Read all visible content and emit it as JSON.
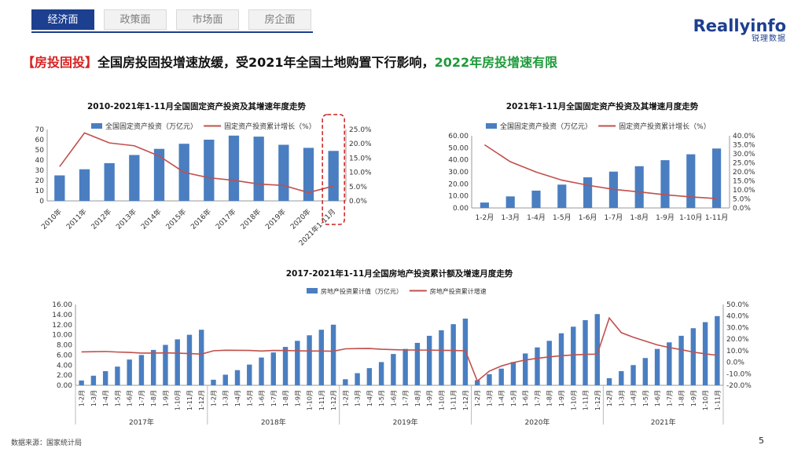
{
  "nav": {
    "tabs": [
      {
        "label": "经济面",
        "active": true
      },
      {
        "label": "政策面",
        "active": false
      },
      {
        "label": "市场面",
        "active": false
      },
      {
        "label": "房企面",
        "active": false
      }
    ]
  },
  "logo": {
    "text": "Reallyinfo",
    "sub": "锐理数据"
  },
  "headline": {
    "tag": "【房投固投】",
    "main": "全国房投固投增速放缓，受2021年全国土地购置下行影响，",
    "highlight": "2022年房投增速有限"
  },
  "footer": {
    "source": "数据来源：国家统计局",
    "page": "5"
  },
  "colors": {
    "bar": "#4a7ec1",
    "line": "#c0504d",
    "accent": "#1c3f8f",
    "highlight_box": "#cc1f1f"
  },
  "chart_data": [
    {
      "type": "bar",
      "title": "2010-2021年1-11月全国固定资产投资及其增速年度走势",
      "categories": [
        "2010年",
        "2011年",
        "2012年",
        "2013年",
        "2014年",
        "2015年",
        "2016年",
        "2017年",
        "2018年",
        "2019年",
        "2020年",
        "2021年1-11月"
      ],
      "series": [
        {
          "name": "全国固定资产投资（万亿元）",
          "type": "bar",
          "axis": "left",
          "values": [
            25,
            31,
            37,
            45,
            51,
            56,
            60,
            64,
            63,
            55,
            52,
            49
          ]
        },
        {
          "name": "固定资产投资累计增长（%）",
          "type": "line",
          "axis": "right",
          "values": [
            12.0,
            23.8,
            20.3,
            19.3,
            15.7,
            10.0,
            8.1,
            7.2,
            5.9,
            5.4,
            2.9,
            5.2
          ]
        }
      ],
      "yticks_left": [
        "0",
        "10",
        "20",
        "30",
        "40",
        "50",
        "60",
        "70"
      ],
      "yticks_right": [
        "0.0%",
        "5.0%",
        "10.0%",
        "15.0%",
        "20.0%",
        "25.0%"
      ],
      "ylim_left": [
        0,
        70
      ],
      "ylim_right": [
        0,
        25
      ],
      "highlight": "2021年1-11月"
    },
    {
      "type": "bar",
      "title": "2021年1-11月全国固定资产投资及其增速月度走势",
      "categories": [
        "1-2月",
        "1-3月",
        "1-4月",
        "1-5月",
        "1-6月",
        "1-7月",
        "1-8月",
        "1-9月",
        "1-10月",
        "1-11月"
      ],
      "series": [
        {
          "name": "全国固定资产投资（万亿元）",
          "type": "bar",
          "axis": "left",
          "values": [
            4.5,
            9.6,
            14.4,
            19.4,
            25.5,
            30.2,
            34.7,
            39.7,
            44.6,
            49.4
          ]
        },
        {
          "name": "固定资产投资累计增长（%）",
          "type": "line",
          "axis": "right",
          "values": [
            35.0,
            25.6,
            19.9,
            15.4,
            12.6,
            10.3,
            8.9,
            7.3,
            6.1,
            5.2
          ]
        }
      ],
      "yticks_left": [
        "0.00",
        "10.00",
        "20.00",
        "30.00",
        "40.00",
        "50.00",
        "60.00"
      ],
      "yticks_right": [
        "0.0%",
        "5.0%",
        "10.0%",
        "15.0%",
        "20.0%",
        "25.0%",
        "30.0%",
        "35.0%",
        "40.0%"
      ],
      "ylim_left": [
        0,
        60
      ],
      "ylim_right": [
        0,
        40
      ]
    },
    {
      "type": "bar",
      "title": "2017-2021年1-11月全国房地产投资累计额及增速月度走势",
      "groups": [
        {
          "label": "2017年",
          "months": [
            "1-2月",
            "1-3月",
            "1-4月",
            "1-5月",
            "1-6月",
            "1-7月",
            "1-8月",
            "1-9月",
            "1-10月",
            "1-11月",
            "1-12月"
          ],
          "values": [
            0.95,
            1.9,
            2.8,
            3.7,
            5.1,
            6.0,
            7.0,
            8.0,
            9.1,
            10.0,
            11.0
          ],
          "growth": [
            8.9,
            9.1,
            9.3,
            8.8,
            8.5,
            7.9,
            7.9,
            8.1,
            7.8,
            7.5,
            7.0
          ]
        },
        {
          "label": "2018年",
          "months": [
            "1-2月",
            "1-3月",
            "1-4月",
            "1-5月",
            "1-6月",
            "1-7月",
            "1-8月",
            "1-9月",
            "1-10月",
            "1-11月",
            "1-12月"
          ],
          "values": [
            1.1,
            2.1,
            3.0,
            4.1,
            5.5,
            6.5,
            7.6,
            8.8,
            9.9,
            11.0,
            12.0
          ],
          "growth": [
            9.9,
            10.4,
            10.3,
            10.2,
            9.7,
            10.2,
            10.1,
            9.9,
            9.7,
            9.7,
            9.5
          ]
        },
        {
          "label": "2019年",
          "months": [
            "1-2月",
            "1-3月",
            "1-4月",
            "1-5月",
            "1-6月",
            "1-7月",
            "1-8月",
            "1-9月",
            "1-10月",
            "1-11月",
            "1-12月"
          ],
          "values": [
            1.2,
            2.4,
            3.4,
            4.6,
            6.2,
            7.2,
            8.4,
            9.8,
            10.9,
            12.1,
            13.2
          ],
          "growth": [
            11.6,
            11.8,
            11.9,
            11.2,
            10.9,
            10.6,
            10.5,
            10.5,
            10.3,
            10.2,
            9.9
          ]
        },
        {
          "label": "2020年",
          "months": [
            "1-2月",
            "1-3月",
            "1-4月",
            "1-5月",
            "1-6月",
            "1-7月",
            "1-8月",
            "1-9月",
            "1-10月",
            "1-11月",
            "1-12月"
          ],
          "values": [
            1.0,
            2.2,
            3.3,
            4.6,
            6.3,
            7.5,
            8.8,
            10.3,
            11.6,
            12.9,
            14.1
          ],
          "growth": [
            -16.3,
            -7.7,
            -3.3,
            -0.3,
            1.9,
            3.4,
            4.6,
            5.6,
            6.3,
            6.8,
            7.0
          ]
        },
        {
          "label": "2021年",
          "months": [
            "1-2月",
            "1-3月",
            "1-4月",
            "1-5月",
            "1-6月",
            "1-7月",
            "1-8月",
            "1-9月",
            "1-10月",
            "1-11月"
          ],
          "values": [
            1.4,
            2.8,
            4.0,
            5.4,
            7.2,
            8.5,
            9.8,
            11.3,
            12.5,
            13.7
          ],
          "growth": [
            38.3,
            25.6,
            21.6,
            18.3,
            15.0,
            12.7,
            10.9,
            8.8,
            7.2,
            6.0
          ]
        }
      ],
      "series_names": [
        "房地产投资累计值（万亿元）",
        "房地产投资累计增速"
      ],
      "yticks_left": [
        "0.00",
        "2.00",
        "4.00",
        "6.00",
        "8.00",
        "10.00",
        "12.00",
        "14.00",
        "16.00"
      ],
      "yticks_right": [
        "-20.0%",
        "-10.0%",
        "0.0%",
        "10.0%",
        "20.0%",
        "30.0%",
        "40.0%",
        "50.0%"
      ],
      "ylim_left": [
        0,
        16
      ],
      "ylim_right": [
        -20,
        50
      ]
    }
  ]
}
